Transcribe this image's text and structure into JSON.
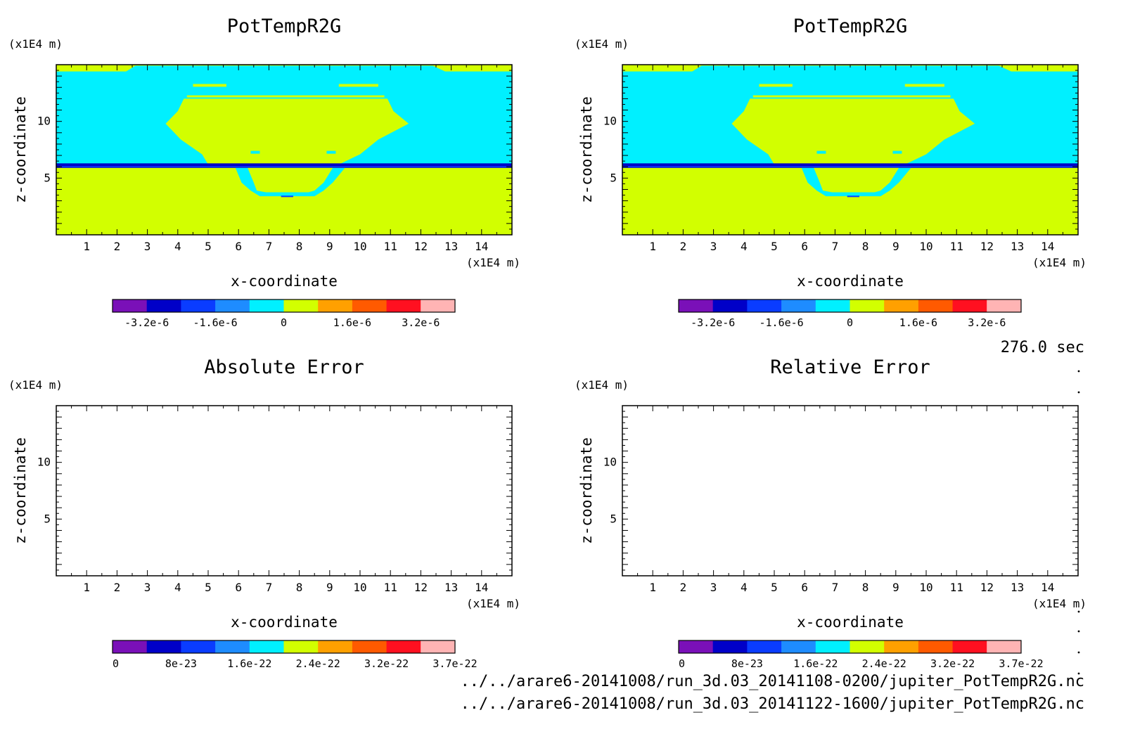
{
  "colors": {
    "palette": [
      "#7a10b8",
      "#0000c8",
      "#0a3cff",
      "#1e8cff",
      "#00f0ff",
      "#d2ff00",
      "#ffa000",
      "#ff5a00",
      "#ff1020",
      "#ffb4b4"
    ],
    "bg_upper": "#00f0ff",
    "bg_lower": "#d2ff00",
    "band_dark": "#0000c8",
    "band_mid": "#0a3cff"
  },
  "time_label": "276.0 sec",
  "files": [
    "../../arare6-20141008/run_3d.03_20141108-0200/jupiter_PotTempR2G.nc",
    "../../arare6-20141008/run_3d.03_20141122-1600/jupiter_PotTempR2G.nc"
  ],
  "chart_data": [
    {
      "type": "heatmap",
      "title": "PotTempR2G",
      "xlabel": "x-coordinate",
      "ylabel": "z-coordinate",
      "x_unit": "(x1E4 m)",
      "y_unit": "(x1E4 m)",
      "xlim": [
        0,
        15
      ],
      "ylim": [
        0,
        15
      ],
      "xticks": [
        "1",
        "2",
        "3",
        "4",
        "5",
        "6",
        "7",
        "8",
        "9",
        "10",
        "11",
        "12",
        "13",
        "14"
      ],
      "yticks": [
        "5",
        "10"
      ],
      "filled": true,
      "colorbar": {
        "ticks": [
          "-3.2e-6",
          "-1.6e-6",
          "0",
          "1.6e-6",
          "3.2e-6"
        ],
        "range": [
          -4e-06,
          4e-06
        ],
        "levels": 10
      }
    },
    {
      "type": "heatmap",
      "title": "PotTempR2G",
      "xlabel": "x-coordinate",
      "ylabel": "z-coordinate",
      "x_unit": "(x1E4 m)",
      "y_unit": "(x1E4 m)",
      "xlim": [
        0,
        15
      ],
      "ylim": [
        0,
        15
      ],
      "xticks": [
        "1",
        "2",
        "3",
        "4",
        "5",
        "6",
        "7",
        "8",
        "9",
        "10",
        "11",
        "12",
        "13",
        "14"
      ],
      "yticks": [
        "5",
        "10"
      ],
      "filled": true,
      "colorbar": {
        "ticks": [
          "-3.2e-6",
          "-1.6e-6",
          "0",
          "1.6e-6",
          "3.2e-6"
        ],
        "range": [
          -4e-06,
          4e-06
        ],
        "levels": 10
      }
    },
    {
      "type": "heatmap",
      "title": "Absolute Error",
      "xlabel": "x-coordinate",
      "ylabel": "z-coordinate",
      "x_unit": "(x1E4 m)",
      "y_unit": "(x1E4 m)",
      "xlim": [
        0,
        15
      ],
      "ylim": [
        0,
        15
      ],
      "xticks": [
        "1",
        "2",
        "3",
        "4",
        "5",
        "6",
        "7",
        "8",
        "9",
        "10",
        "11",
        "12",
        "13",
        "14"
      ],
      "yticks": [
        "5",
        "10"
      ],
      "filled": false,
      "colorbar": {
        "ticks": [
          "0",
          "8e-23",
          "1.6e-22",
          "2.4e-22",
          "3.2e-22",
          "3.7e-22"
        ],
        "range": [
          0,
          3.7e-22
        ],
        "levels": 10
      }
    },
    {
      "type": "heatmap",
      "title": "Relative Error",
      "xlabel": "x-coordinate",
      "ylabel": "z-coordinate",
      "x_unit": "(x1E4 m)",
      "y_unit": "(x1E4 m)",
      "xlim": [
        0,
        15
      ],
      "ylim": [
        0,
        15
      ],
      "xticks": [
        "1",
        "2",
        "3",
        "4",
        "5",
        "6",
        "7",
        "8",
        "9",
        "10",
        "11",
        "12",
        "13",
        "14"
      ],
      "yticks": [
        "5",
        "10"
      ],
      "filled": false,
      "colorbar": {
        "ticks": [
          "0",
          "8e-23",
          "1.6e-22",
          "2.4e-22",
          "3.2e-22",
          "3.7e-22"
        ],
        "range": [
          0,
          3.7e-22
        ],
        "levels": 10
      }
    }
  ]
}
